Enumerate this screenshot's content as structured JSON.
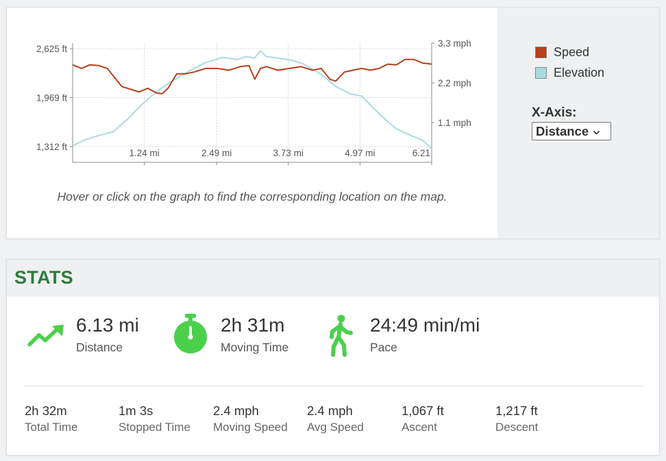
{
  "chart": {
    "hint": "Hover or click on the graph to find the corresponding location on the map.",
    "legend": [
      {
        "label": "Speed",
        "color": "#b5401a"
      },
      {
        "label": "Elevation",
        "color": "#a9dbe3"
      }
    ],
    "x_axis_label": "X-Axis:",
    "x_axis_selected": "Distance",
    "chevron_icon": "chevron-down-icon"
  },
  "chart_data": {
    "type": "line",
    "x_ticks": [
      "1.24 mi",
      "2.49 mi",
      "3.73 mi",
      "4.97 mi",
      "6.21"
    ],
    "x_tick_values": [
      1.24,
      2.49,
      3.73,
      4.97,
      6.21
    ],
    "xlim": [
      0,
      6.21
    ],
    "y_left_ticks": [
      "2,625 ft",
      "1,969 ft",
      "1,312 ft"
    ],
    "y_left_tick_values": [
      2625,
      1969,
      1312
    ],
    "y_left_lim": [
      1100,
      2700
    ],
    "y_right_ticks": [
      "3.3 mph",
      "2.2 mph",
      "1.1 mph"
    ],
    "y_right_tick_values": [
      3.3,
      2.2,
      1.1
    ],
    "y_right_lim": [
      0,
      3.3
    ],
    "grid": true,
    "series": [
      {
        "name": "Elevation",
        "axis": "left",
        "color": "#a9dbe3",
        "x": [
          0,
          0.2,
          0.45,
          0.7,
          0.95,
          1.2,
          1.45,
          1.7,
          2.0,
          2.3,
          2.6,
          2.85,
          3.0,
          3.15,
          3.25,
          3.35,
          3.55,
          3.8,
          4.0,
          4.3,
          4.55,
          4.8,
          5.0,
          5.2,
          5.4,
          5.6,
          5.85,
          6.05,
          6.21
        ],
        "values": [
          1320,
          1400,
          1460,
          1510,
          1680,
          1880,
          2050,
          2180,
          2320,
          2440,
          2510,
          2480,
          2520,
          2500,
          2600,
          2520,
          2500,
          2470,
          2420,
          2280,
          2120,
          2020,
          1990,
          1830,
          1680,
          1550,
          1460,
          1400,
          1280
        ]
      },
      {
        "name": "Speed",
        "axis": "right",
        "color": "#b5401a",
        "x": [
          0,
          0.15,
          0.3,
          0.45,
          0.6,
          0.75,
          0.85,
          0.95,
          1.05,
          1.15,
          1.3,
          1.45,
          1.55,
          1.65,
          1.8,
          1.95,
          2.1,
          2.3,
          2.5,
          2.7,
          2.9,
          3.05,
          3.15,
          3.25,
          3.35,
          3.55,
          3.75,
          3.95,
          4.15,
          4.3,
          4.45,
          4.55,
          4.7,
          4.85,
          5.0,
          5.15,
          5.3,
          5.45,
          5.6,
          5.75,
          5.9,
          6.05,
          6.21
        ],
        "values": [
          2.7,
          2.6,
          2.7,
          2.68,
          2.6,
          2.3,
          2.1,
          2.05,
          2.0,
          1.95,
          2.05,
          1.92,
          1.9,
          2.05,
          2.45,
          2.45,
          2.5,
          2.6,
          2.6,
          2.55,
          2.65,
          2.68,
          2.3,
          2.6,
          2.65,
          2.55,
          2.6,
          2.65,
          2.55,
          2.6,
          2.3,
          2.25,
          2.5,
          2.55,
          2.6,
          2.55,
          2.6,
          2.72,
          2.7,
          2.85,
          2.85,
          2.75,
          2.72
        ]
      }
    ]
  },
  "stats": {
    "title": "STATS",
    "main": [
      {
        "value": "6.13 mi",
        "label": "Distance",
        "icon": "trending-up-icon"
      },
      {
        "value": "2h 31m",
        "label": "Moving Time",
        "icon": "stopwatch-icon"
      },
      {
        "value": "24:49 min/mi",
        "label": "Pace",
        "icon": "walking-person-icon"
      }
    ],
    "details": [
      {
        "value": "2h 32m",
        "label": "Total Time"
      },
      {
        "value": "1m 3s",
        "label": "Stopped Time"
      },
      {
        "value": "2.4 mph",
        "label": "Moving Speed"
      },
      {
        "value": "2.4 mph",
        "label": "Avg Speed"
      },
      {
        "value": "1,067 ft",
        "label": "Ascent"
      },
      {
        "value": "1,217 ft",
        "label": "Descent"
      }
    ],
    "icon_color": "#4cd04c"
  }
}
